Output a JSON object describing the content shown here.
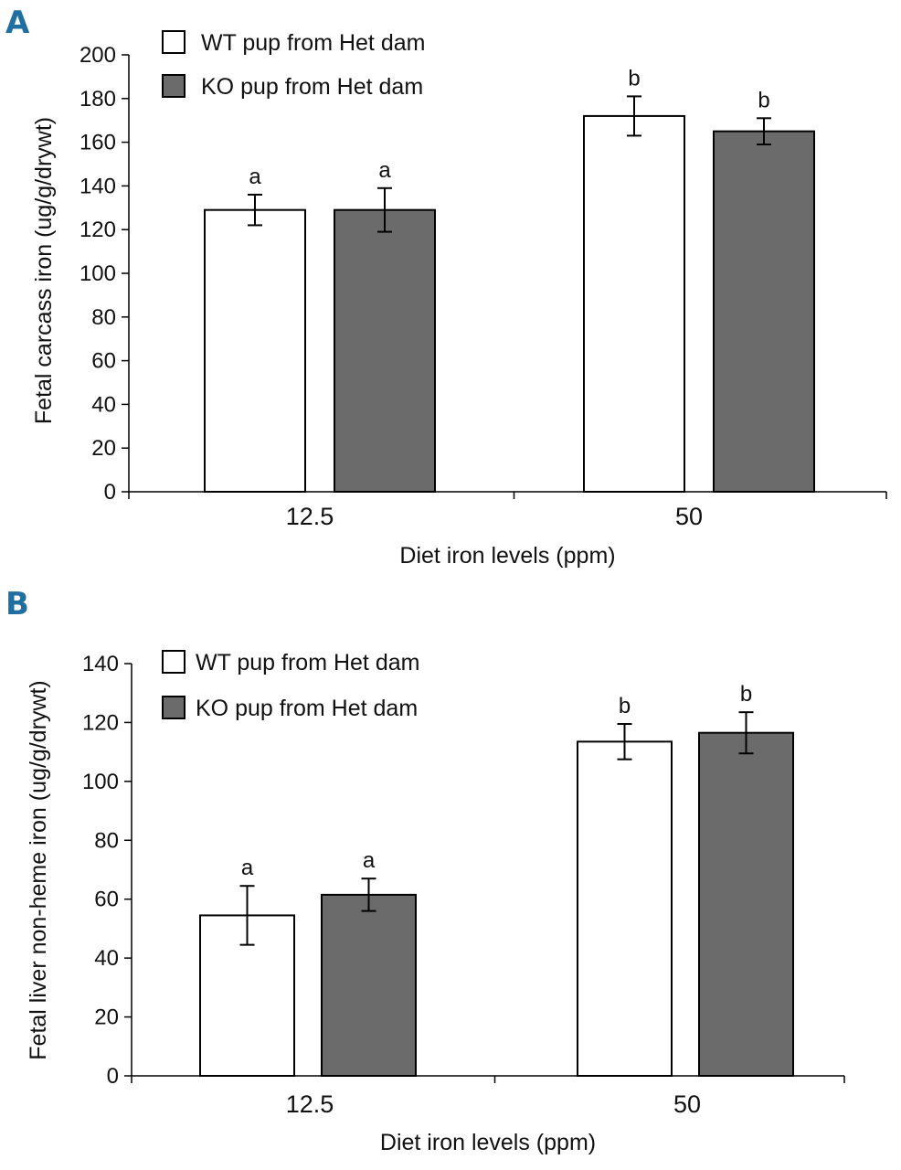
{
  "chart_data": [
    {
      "type": "bar",
      "panel": "A",
      "title": "",
      "xlabel": "Diet iron levels (ppm)",
      "ylabel": "Fetal carcass iron (ug/g/drywt)",
      "ylim": [
        0,
        200
      ],
      "yticks": [
        0,
        20,
        40,
        60,
        80,
        100,
        120,
        140,
        160,
        180,
        200
      ],
      "categories": [
        "12.5",
        "50"
      ],
      "series": [
        {
          "name": "WT pup from Het dam",
          "color": "#ffffff",
          "values": [
            129,
            172
          ],
          "errors": [
            7,
            9
          ],
          "labels": [
            "a",
            "b"
          ]
        },
        {
          "name": "KO pup from Het dam",
          "color": "#6b6b6b",
          "values": [
            129,
            165
          ],
          "errors": [
            10,
            6
          ],
          "labels": [
            "a",
            "b"
          ]
        }
      ],
      "legend_position": "top-left"
    },
    {
      "type": "bar",
      "panel": "B",
      "title": "",
      "xlabel": "Diet iron levels (ppm)",
      "ylabel": "Fetal liver non-heme iron (ug/g/drywt)",
      "ylim": [
        0,
        140
      ],
      "yticks": [
        0,
        20,
        40,
        60,
        80,
        100,
        120,
        140
      ],
      "categories": [
        "12.5",
        "50"
      ],
      "series": [
        {
          "name": "WT pup from Het dam",
          "color": "#ffffff",
          "values": [
            54.5,
            113.5
          ],
          "errors": [
            10,
            6
          ],
          "labels": [
            "a",
            "b"
          ]
        },
        {
          "name": "KO pup from Het dam",
          "color": "#6b6b6b",
          "values": [
            61.5,
            116.5
          ],
          "errors": [
            5.5,
            7
          ],
          "labels": [
            "a",
            "b"
          ]
        }
      ],
      "legend_position": "top-left"
    }
  ]
}
